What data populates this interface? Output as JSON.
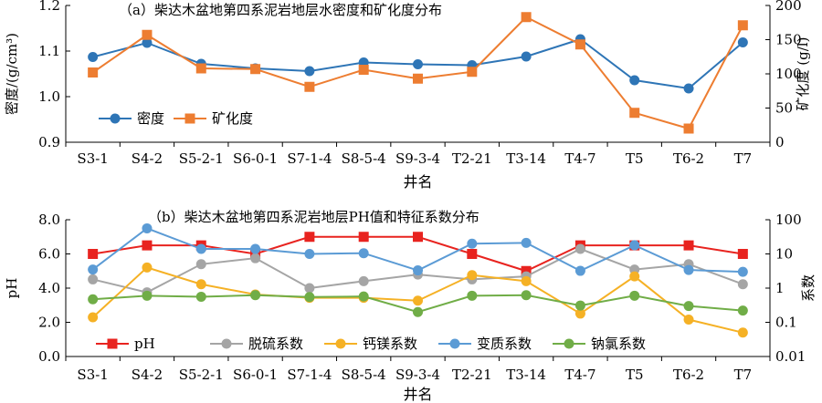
{
  "chart_data": [
    {
      "type": "line",
      "title": "（a）柴达木盆地第四系泥岩地层水密度和矿化度分布",
      "xlabel": "井名",
      "ylabel": "密度/(g/cm³)",
      "y2label": "矿化度 (g/l)",
      "categories": [
        "S3-1",
        "S4-2",
        "S5-2-1",
        "S6-0-1",
        "S7-1-4",
        "S8-5-4",
        "S9-3-4",
        "T2-21",
        "T3-14",
        "T4-7",
        "T5",
        "T6-2",
        "T7"
      ],
      "ylim": [
        0.9,
        1.2
      ],
      "yticks": [
        "0.9",
        "1.0",
        "1.1",
        "1.2"
      ],
      "y2lim": [
        0,
        200
      ],
      "y2ticks": [
        "0",
        "50",
        "100",
        "150",
        "200"
      ],
      "legend_position": "bottom-left",
      "series": [
        {
          "name": "密度",
          "axis": "left",
          "color": "#2E75B6",
          "marker": "circle",
          "values": [
            1.087,
            1.118,
            1.072,
            1.062,
            1.056,
            1.075,
            1.071,
            1.069,
            1.088,
            1.126,
            1.036,
            1.018,
            1.119
          ]
        },
        {
          "name": "矿化度",
          "axis": "right",
          "color": "#ED7D31",
          "marker": "square",
          "values": [
            102,
            157,
            108,
            107,
            81,
            106,
            93,
            103,
            183,
            143,
            43,
            20,
            171
          ]
        }
      ]
    },
    {
      "type": "line",
      "title": "（b）柴达木盆地第四系泥岩地层PH值和特征系数分布",
      "xlabel": "井名",
      "ylabel": "pH",
      "y2label": "系数",
      "categories": [
        "S3-1",
        "S4-2",
        "S5-2-1",
        "S6-0-1",
        "S7-1-4",
        "S8-5-4",
        "S9-3-4",
        "T2-21",
        "T3-14",
        "T4-7",
        "T5",
        "T6-2",
        "T7"
      ],
      "ylim": [
        0,
        8
      ],
      "yticks": [
        "0.0",
        "2.0",
        "4.0",
        "6.0",
        "8.0"
      ],
      "y2scale": "log",
      "y2lim": [
        0.01,
        100
      ],
      "y2ticks": [
        "0.01",
        "0.1",
        "1",
        "10",
        "100"
      ],
      "legend_position": "bottom",
      "series": [
        {
          "name": "pH",
          "axis": "left",
          "color": "#E8231F",
          "marker": "square",
          "values": [
            6.0,
            6.5,
            6.5,
            6.0,
            7.0,
            7.0,
            7.0,
            6.0,
            5.0,
            6.5,
            6.5,
            6.5,
            6.0
          ]
        },
        {
          "name": "脱硫系数",
          "axis": "right",
          "color": "#A5A5A5",
          "marker": "circle",
          "values": [
            1.8,
            0.75,
            5.0,
            7.5,
            1.0,
            1.6,
            2.5,
            1.8,
            2.2,
            14,
            3.5,
            5.0,
            1.3
          ]
        },
        {
          "name": "钙镁系数",
          "axis": "right",
          "color": "#F5B125",
          "marker": "circle",
          "values": [
            0.14,
            4.0,
            1.3,
            0.65,
            0.52,
            0.52,
            0.43,
            2.4,
            1.6,
            0.18,
            2.2,
            0.12,
            0.05
          ]
        },
        {
          "name": "变质系数",
          "axis": "right",
          "color": "#5B9BD5",
          "marker": "circle",
          "values": [
            3.5,
            56,
            14,
            14,
            10,
            10.5,
            3.3,
            20,
            21,
            3.2,
            18,
            3.4,
            3.0
          ]
        },
        {
          "name": "钠氯系数",
          "axis": "right",
          "color": "#70AD47",
          "marker": "circle",
          "values": [
            0.47,
            0.6,
            0.56,
            0.62,
            0.55,
            0.57,
            0.2,
            0.6,
            0.62,
            0.31,
            0.6,
            0.3,
            0.22
          ]
        }
      ]
    }
  ]
}
